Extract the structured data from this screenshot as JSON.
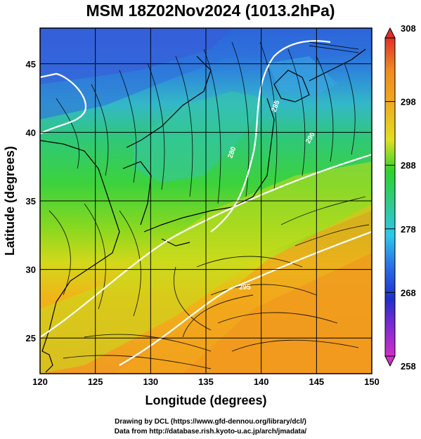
{
  "title": "MSM 18Z02Nov2024 (1013.2hPa)",
  "chart_data": {
    "type": "heatmap",
    "title": "MSM 18Z02Nov2024 (1013.2hPa)",
    "xlabel": "Longitude (degrees)",
    "ylabel": "Latitude  (degrees)",
    "xlim": [
      120,
      150
    ],
    "ylim": [
      22.4,
      47.6
    ],
    "x_ticks": [
      "120",
      "125",
      "130",
      "135",
      "140",
      "145",
      "150"
    ],
    "y_ticks": [
      "25",
      "30",
      "35",
      "40",
      "45"
    ],
    "grid": true,
    "field": "temperature (K) with surface wind streamlines",
    "colorbar": {
      "min": 258,
      "max": 308,
      "ticks": [
        "308",
        "298",
        "288",
        "278",
        "268",
        "258"
      ],
      "extend": "both"
    },
    "isotherm_labels": [
      "280",
      "285",
      "290",
      "295"
    ]
  },
  "credits": {
    "line1": "Drawing by DCL (https://www.gfd-dennou.org/library/dcl/)",
    "line2": "Data from http://database.rish.kyoto-u.ac.jp/arch/jmadata/"
  }
}
